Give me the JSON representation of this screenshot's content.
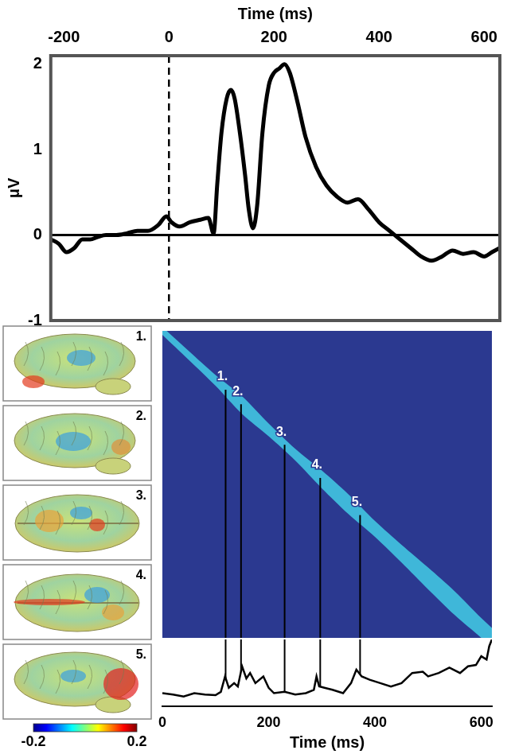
{
  "chart_data": [
    {
      "type": "line",
      "xlabel": "Time (ms)",
      "ylabel": "μV",
      "color": "#000000",
      "grid": false,
      "x": [
        -225,
        -210,
        -195,
        -180,
        -165,
        -150,
        -135,
        -120,
        -100,
        -80,
        -60,
        -40,
        -20,
        -5,
        5,
        20,
        40,
        60,
        75,
        85,
        92,
        100,
        110,
        118,
        125,
        135,
        145,
        152,
        160,
        168,
        178,
        190,
        200,
        210,
        220,
        230,
        245,
        260,
        280,
        300,
        320,
        340,
        360,
        380,
        400,
        420,
        440,
        460,
        480,
        500,
        520,
        540,
        560,
        580,
        600,
        615,
        630
      ],
      "values": [
        -0.05,
        -0.1,
        -0.2,
        -0.15,
        -0.05,
        -0.05,
        -0.02,
        0.0,
        0.0,
        0.02,
        0.05,
        0.05,
        0.12,
        0.22,
        0.15,
        0.1,
        0.15,
        0.18,
        0.2,
        0.02,
        0.6,
        1.2,
        1.6,
        1.7,
        1.6,
        1.2,
        0.7,
        0.3,
        0.08,
        0.35,
        1.2,
        1.75,
        1.9,
        1.95,
        2.0,
        1.9,
        1.55,
        1.15,
        0.8,
        0.58,
        0.45,
        0.38,
        0.42,
        0.3,
        0.15,
        0.05,
        -0.05,
        -0.15,
        -0.25,
        -0.3,
        -0.25,
        -0.18,
        -0.22,
        -0.2,
        -0.25,
        -0.2,
        -0.15
      ],
      "xlim": [
        -225,
        630
      ],
      "xticks": [
        -200,
        0,
        200,
        400,
        600
      ],
      "ylim": [
        -1,
        2.1
      ],
      "yticks": [
        -1,
        0,
        1,
        2
      ],
      "vline": 0,
      "hline": 0
    },
    {
      "type": "heatmap",
      "tick_labels": false,
      "x": [
        0,
        50,
        100,
        150,
        200,
        250,
        300,
        350,
        400,
        450,
        500,
        550,
        600,
        620
      ],
      "outer_halfwidth": [
        8,
        9,
        11,
        18,
        13,
        12,
        18,
        20,
        16,
        18,
        22,
        24,
        20,
        20
      ],
      "inner_halfwidth": [
        4,
        4,
        5,
        8,
        6,
        6,
        8,
        9,
        7,
        8,
        10,
        11,
        9,
        9
      ],
      "xlim": [
        0,
        620
      ],
      "ylim": [
        0,
        620
      ],
      "markers": [
        {
          "label": "1.",
          "x": 119
        },
        {
          "label": "2.",
          "x": 148
        },
        {
          "label": "3.",
          "x": 230
        },
        {
          "label": "4.",
          "x": 297
        },
        {
          "label": "5.",
          "x": 372
        }
      ]
    },
    {
      "type": "line",
      "xlabel": "Time (ms)",
      "color": "#000000",
      "grid": false,
      "tick_labels": "x",
      "x": [
        0,
        20,
        40,
        60,
        80,
        100,
        110,
        118,
        125,
        135,
        142,
        150,
        158,
        165,
        175,
        190,
        200,
        210,
        230,
        250,
        270,
        285,
        290,
        295,
        305,
        320,
        340,
        355,
        365,
        375,
        390,
        410,
        430,
        450,
        470,
        490,
        500,
        520,
        540,
        560,
        575,
        590,
        600,
        610,
        615,
        620
      ],
      "values": [
        0.2,
        0.18,
        0.15,
        0.2,
        0.18,
        0.17,
        0.22,
        0.45,
        0.28,
        0.35,
        0.3,
        0.6,
        0.42,
        0.5,
        0.35,
        0.45,
        0.28,
        0.2,
        0.22,
        0.18,
        0.2,
        0.25,
        0.45,
        0.3,
        0.28,
        0.25,
        0.2,
        0.35,
        0.55,
        0.45,
        0.4,
        0.35,
        0.3,
        0.35,
        0.5,
        0.52,
        0.45,
        0.5,
        0.58,
        0.5,
        0.6,
        0.62,
        0.75,
        0.7,
        0.9,
        1.0
      ],
      "xlim": [
        0,
        620
      ],
      "xticks": [
        0,
        200,
        400,
        600
      ],
      "ylim": [
        0,
        1
      ]
    }
  ],
  "brain_maps": {
    "labels": [
      "1.",
      "2.",
      "3.",
      "4.",
      "5."
    ],
    "colorbar": {
      "range": [
        -0.2,
        0.2
      ],
      "ticks": [
        -0.2,
        0.2
      ]
    }
  }
}
